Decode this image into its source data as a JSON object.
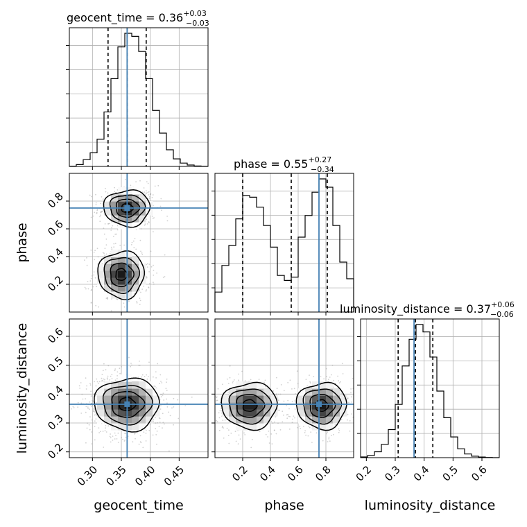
{
  "chart_data": {
    "type": "corner",
    "parameters": [
      "geocent_time",
      "phase",
      "luminosity_distance"
    ],
    "truths": {
      "geocent_time": 0.36,
      "phase": 0.75,
      "luminosity_distance": 0.365
    },
    "colors": {
      "truth": "#4682b4",
      "hist": "#000000",
      "grid": "#b0b0b0",
      "scatter": "#999999"
    },
    "axes": {
      "geocent_time": {
        "lim": [
          0.26,
          0.5
        ],
        "ticks": [
          0.3,
          0.35,
          0.4,
          0.45
        ],
        "tick_labels": [
          "0.30",
          "0.35",
          "0.40",
          "0.45"
        ]
      },
      "phase": {
        "lim": [
          0.0,
          1.0
        ],
        "ticks": [
          0.2,
          0.4,
          0.6,
          0.8
        ],
        "tick_labels": [
          "0.2",
          "0.4",
          "0.6",
          "0.8"
        ]
      },
      "luminosity_distance": {
        "lim": [
          0.18,
          0.66
        ],
        "ticks": [
          0.2,
          0.3,
          0.4,
          0.5,
          0.6
        ],
        "tick_labels": [
          "0.2",
          "0.3",
          "0.4",
          "0.5",
          "0.6"
        ]
      }
    },
    "marginals": [
      {
        "param": "geocent_time",
        "title_main": "geocent_time = 0.36",
        "title_sup": "+0.03",
        "title_sub": "−0.03",
        "quantiles": [
          0.327,
          0.36,
          0.393
        ],
        "bin_edges": [
          0.26,
          0.272,
          0.284,
          0.296,
          0.308,
          0.32,
          0.332,
          0.344,
          0.356,
          0.368,
          0.38,
          0.392,
          0.404,
          0.416,
          0.428,
          0.44,
          0.452,
          0.464,
          0.476,
          0.488,
          0.5
        ],
        "counts": [
          0.2,
          1.2,
          4.5,
          9,
          18,
          36,
          58,
          79,
          88,
          86,
          76,
          58,
          37,
          22,
          11,
          5,
          2.2,
          0.9,
          0.3,
          0.1
        ]
      },
      {
        "param": "phase",
        "title_main": "phase = 0.55",
        "title_sup": "+0.27",
        "title_sub": "−0.34",
        "quantiles": [
          0.2,
          0.55,
          0.81
        ],
        "bin_edges": [
          0.0,
          0.05,
          0.1,
          0.15,
          0.2,
          0.25,
          0.3,
          0.35,
          0.4,
          0.45,
          0.5,
          0.55,
          0.6,
          0.65,
          0.7,
          0.75,
          0.8,
          0.85,
          0.9,
          0.95,
          1.0
        ],
        "counts": [
          12,
          28,
          40,
          56,
          70,
          69,
          63,
          52,
          39,
          22,
          19,
          21,
          45,
          58,
          72,
          80,
          75,
          52,
          30,
          20
        ]
      },
      {
        "param": "luminosity_distance",
        "title_main": "luminosity_distance = 0.37",
        "title_sup": "+0.06",
        "title_sub": "−0.06",
        "quantiles": [
          0.31,
          0.37,
          0.43
        ],
        "bin_edges": [
          0.18,
          0.204,
          0.228,
          0.252,
          0.276,
          0.3,
          0.324,
          0.348,
          0.372,
          0.396,
          0.42,
          0.444,
          0.468,
          0.492,
          0.516,
          0.54,
          0.564,
          0.588,
          0.612,
          0.636,
          0.66
        ],
        "counts": [
          0.5,
          1.5,
          4,
          9,
          19,
          36,
          62,
          80,
          90,
          85,
          68,
          45,
          27,
          14,
          6,
          2.5,
          1,
          0.4,
          0.1,
          0
        ]
      }
    ],
    "joint_panels": [
      {
        "x": "geocent_time",
        "y": "phase",
        "modes": [
          {
            "cx": 0.36,
            "cy": 0.75,
            "sx": 0.02,
            "sy": 0.065,
            "weight": 0.5
          },
          {
            "cx": 0.35,
            "cy": 0.27,
            "sx": 0.02,
            "sy": 0.085,
            "weight": 0.5
          }
        ]
      },
      {
        "x": "geocent_time",
        "y": "luminosity_distance",
        "modes": [
          {
            "cx": 0.36,
            "cy": 0.365,
            "sx": 0.028,
            "sy": 0.045,
            "weight": 1
          }
        ]
      },
      {
        "x": "phase",
        "y": "luminosity_distance",
        "modes": [
          {
            "cx": 0.25,
            "cy": 0.36,
            "sx": 0.1,
            "sy": 0.04,
            "weight": 0.5
          },
          {
            "cx": 0.77,
            "cy": 0.36,
            "sx": 0.09,
            "sy": 0.04,
            "weight": 0.5
          }
        ]
      }
    ]
  }
}
